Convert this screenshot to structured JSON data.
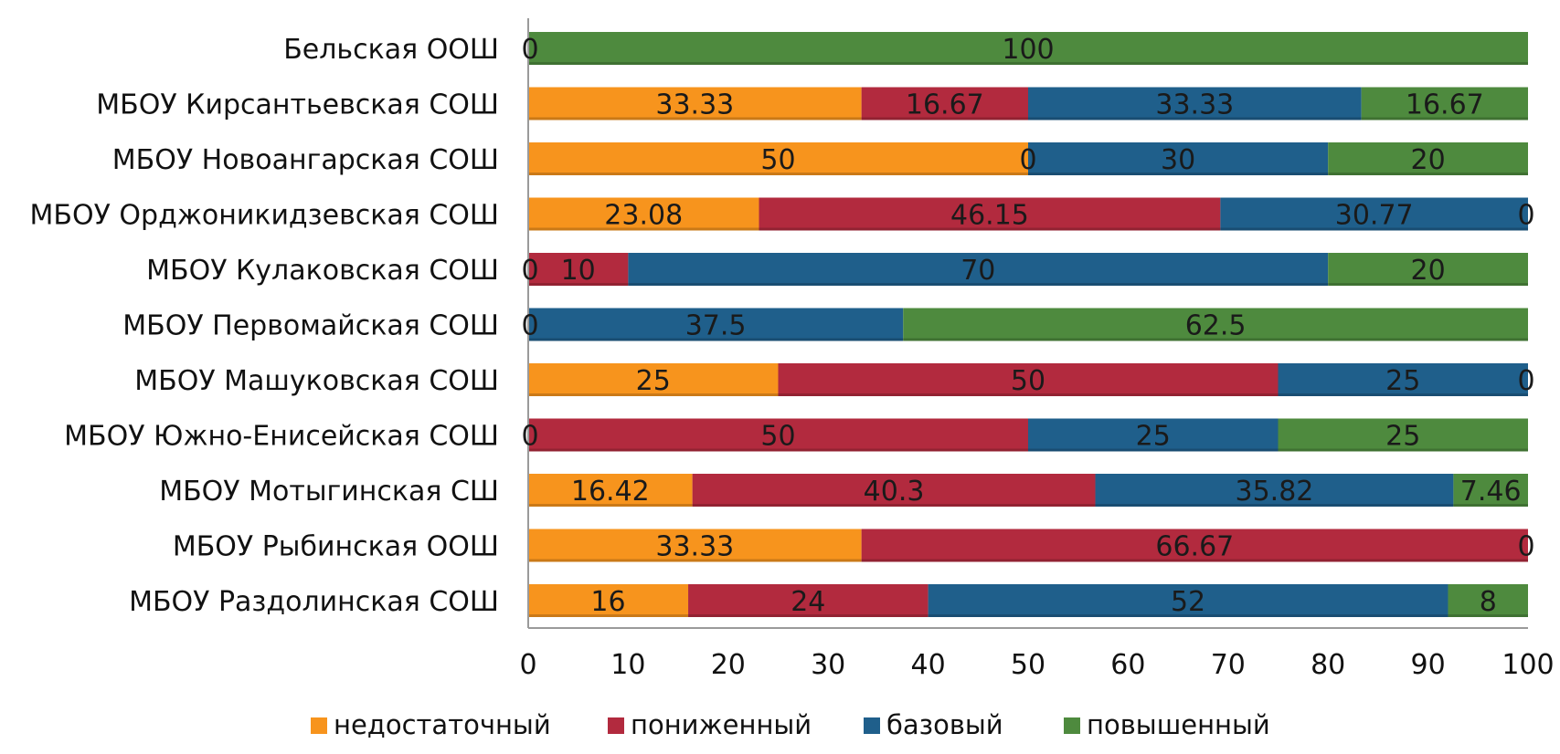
{
  "chart_data": {
    "type": "bar",
    "orientation": "horizontal",
    "stacked": true,
    "categories": [
      "Бельская ООШ",
      "МБОУ Кирсантьевская СОШ",
      "МБОУ Новоангарская СОШ",
      "МБОУ Орджоникидзевская СОШ",
      "МБОУ Кулаковская СОШ",
      "МБОУ Первомайская СОШ",
      "МБОУ Машуковская СОШ",
      "МБОУ Южно-Енисейская СОШ",
      "МБОУ Мотыгинская СШ",
      "МБОУ Рыбинская ООШ",
      "МБОУ Раздолинская СОШ"
    ],
    "series": [
      {
        "name": "недостаточный",
        "color": "#F7941D",
        "values": [
          0,
          33.33,
          50,
          23.08,
          0,
          0,
          25,
          0,
          16.42,
          33.33,
          16
        ]
      },
      {
        "name": "пониженный",
        "color": "#B22A3E",
        "values": [
          0,
          16.67,
          0,
          46.15,
          10,
          0,
          50,
          50,
          40.3,
          66.67,
          24
        ]
      },
      {
        "name": "базовый",
        "color": "#1F5F8B",
        "values": [
          0,
          33.33,
          30,
          30.77,
          70,
          37.5,
          25,
          25,
          35.82,
          0,
          52
        ]
      },
      {
        "name": "повышенный",
        "color": "#4E8A3E",
        "values": [
          100,
          16.67,
          20,
          0,
          20,
          62.5,
          0,
          25,
          7.46,
          0,
          8
        ]
      }
    ],
    "value_labels": [
      [
        "0",
        null,
        null,
        "100"
      ],
      [
        "33.33",
        "16.67",
        "33.33",
        "16.67"
      ],
      [
        "50",
        "0",
        "30",
        "20"
      ],
      [
        "23.08",
        "46.15",
        "30.77",
        "0"
      ],
      [
        "0",
        "10",
        "70",
        "20"
      ],
      [
        "0",
        null,
        "37.5",
        "62.5"
      ],
      [
        "25",
        "50",
        "25",
        "0"
      ],
      [
        "0",
        "50",
        "25",
        "25"
      ],
      [
        "16.42",
        "40.3",
        "35.82",
        "7.46"
      ],
      [
        "33.33",
        "66.67",
        "0",
        null
      ],
      [
        "16",
        "24",
        "52",
        "8"
      ]
    ],
    "xlim": [
      0,
      100
    ],
    "xticks": [
      "0",
      "10",
      "20",
      "30",
      "40",
      "50",
      "60",
      "70",
      "80",
      "90",
      "100"
    ],
    "grid": false,
    "legend_position": "bottom",
    "title": "",
    "xlabel": "",
    "ylabel": ""
  }
}
